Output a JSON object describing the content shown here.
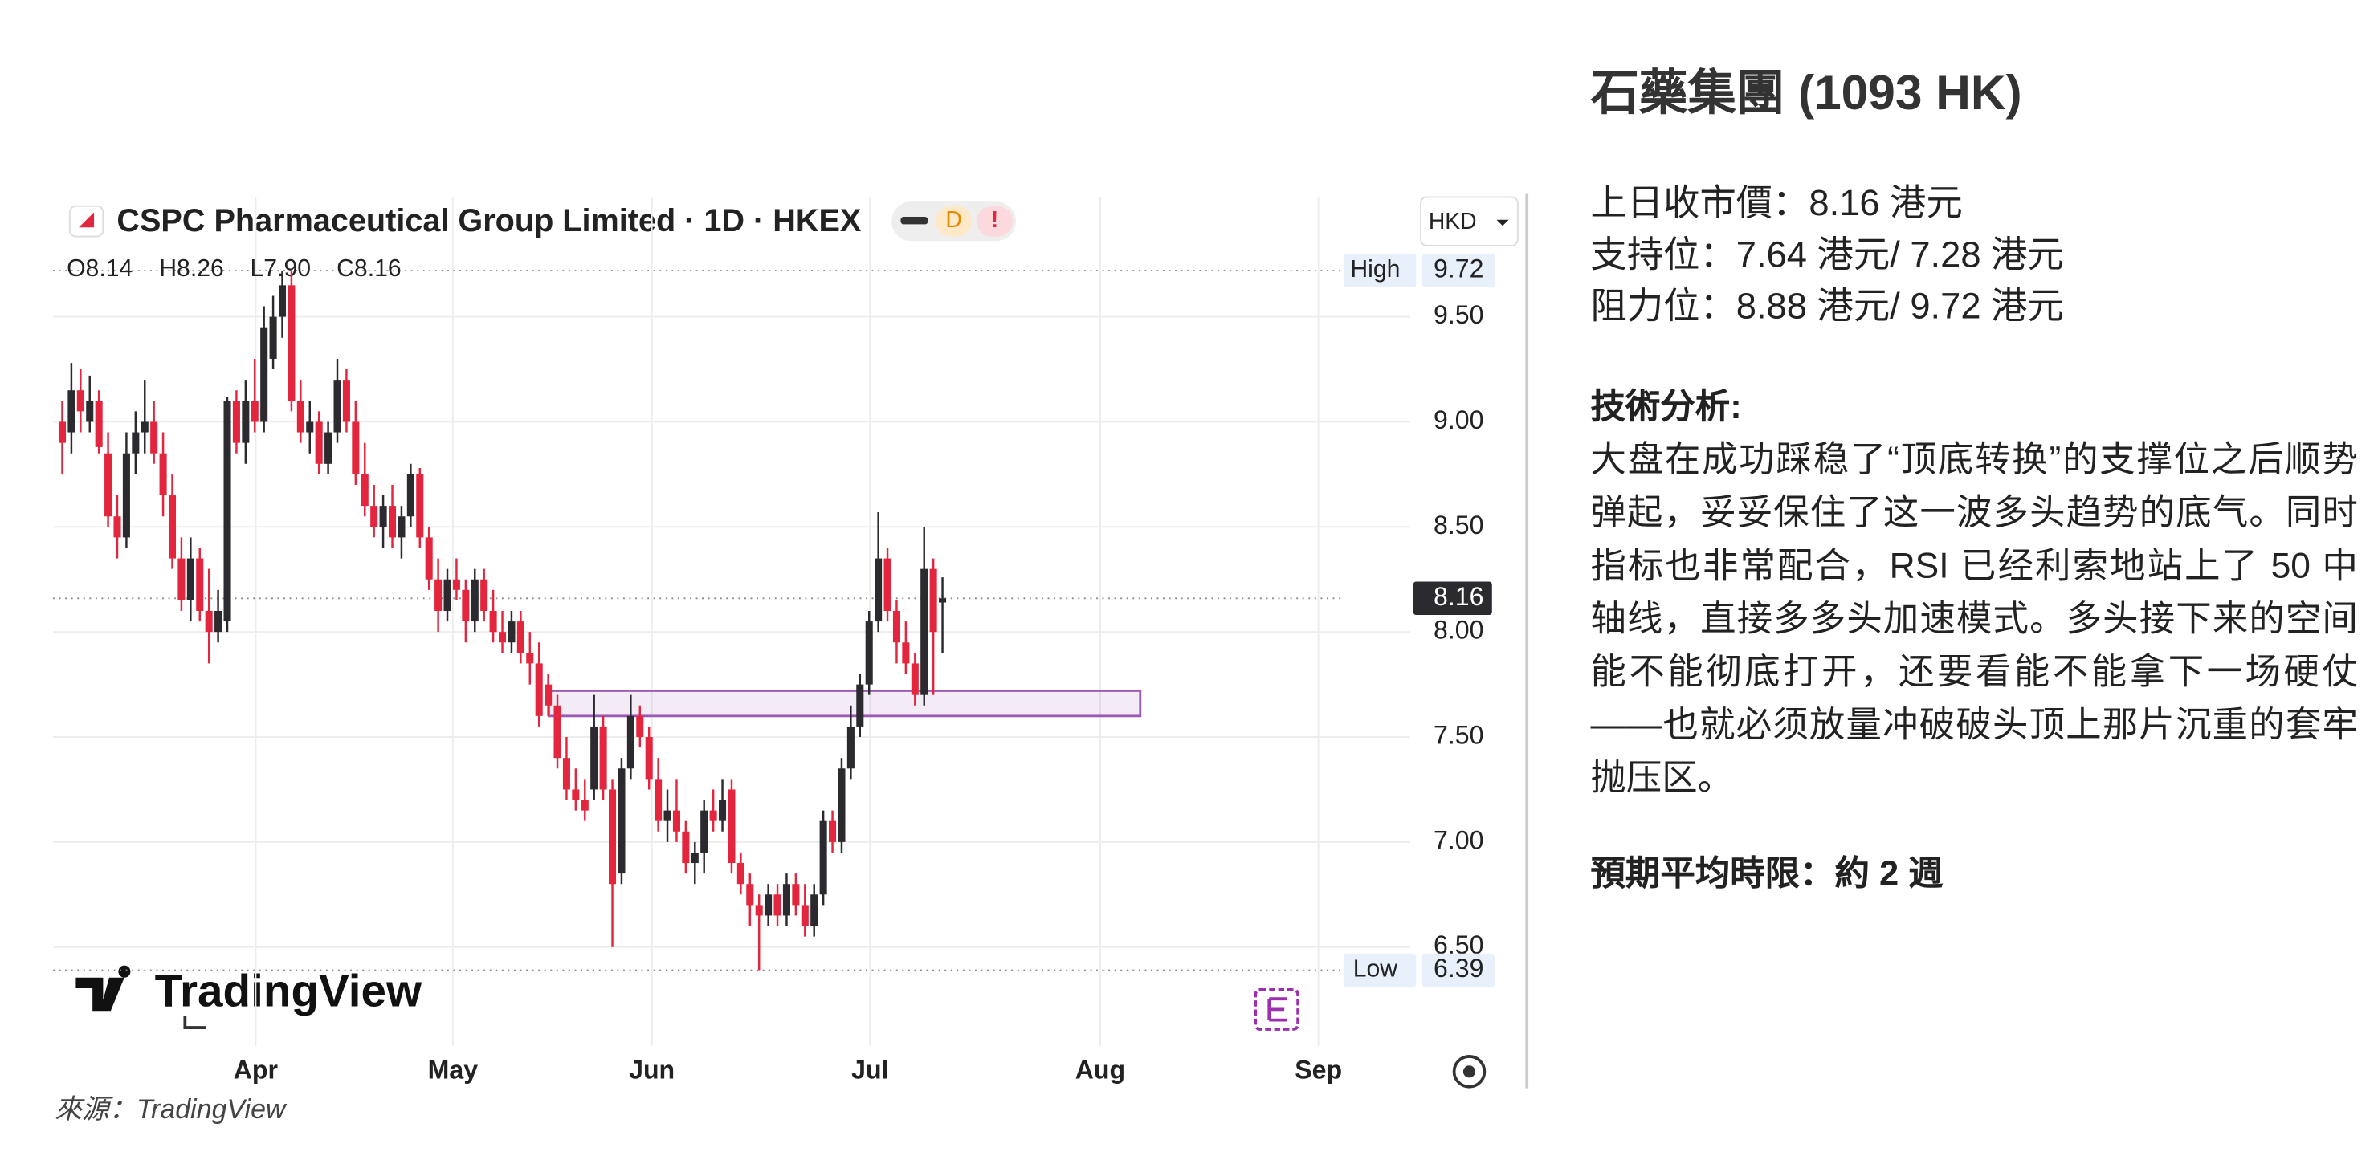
{
  "chart_data": {
    "type": "candlestick",
    "title": "CSPC Pharmaceutical Group Limited · 1D · HKEX",
    "ohlc_labels": [
      "O8.14",
      "H8.26",
      "L7.90",
      "C8.16"
    ],
    "currency": "HKD",
    "interval_badge": "D",
    "alert_badge": "!",
    "logo": "TradingView",
    "up_color": "#2b2b2f",
    "down_color": "#e3263d",
    "categories": [
      null,
      null,
      null,
      null,
      null,
      null,
      null,
      null,
      null,
      null,
      null,
      null,
      null,
      null,
      null,
      null,
      null,
      null,
      null,
      null,
      null,
      null,
      null,
      null,
      null,
      null,
      null,
      null,
      null,
      null,
      null,
      null,
      null,
      null,
      null,
      null,
      null,
      null,
      null,
      null,
      null,
      null,
      null,
      null,
      null,
      null,
      null,
      null,
      null,
      null,
      null,
      null,
      null,
      null,
      null,
      null,
      null,
      null,
      null,
      null,
      null,
      null,
      null,
      null,
      null,
      null,
      null,
      null,
      null,
      null,
      null,
      null,
      null,
      null,
      null,
      null,
      null,
      null,
      null,
      null,
      null,
      null,
      null,
      null,
      null,
      null,
      null,
      null,
      null,
      null,
      null,
      null,
      null,
      null,
      null,
      null,
      null
    ],
    "open": [
      9.0,
      8.95,
      9.15,
      9.0,
      9.1,
      8.85,
      8.55,
      8.45,
      8.85,
      8.95,
      9.0,
      8.85,
      8.65,
      8.35,
      8.15,
      8.35,
      8.1,
      8.0,
      8.05,
      9.1,
      8.9,
      9.1,
      9.0,
      9.3,
      9.5,
      9.65,
      9.1,
      8.95,
      9.0,
      8.8,
      8.95,
      9.2,
      9.0,
      8.75,
      8.6,
      8.5,
      8.6,
      8.45,
      8.55,
      8.75,
      8.45,
      8.25,
      8.1,
      8.25,
      8.2,
      8.05,
      8.25,
      8.1,
      8.0,
      7.95,
      8.05,
      7.9,
      7.85,
      7.75,
      7.65,
      7.4,
      7.25,
      7.2,
      7.25,
      7.55,
      7.25,
      6.85,
      7.35,
      7.6,
      7.5,
      7.3,
      7.1,
      7.15,
      7.05,
      6.9,
      6.95,
      7.15,
      7.1,
      7.25,
      6.9,
      6.8,
      6.7,
      6.65,
      6.75,
      6.65,
      6.8,
      6.7,
      6.6,
      6.75,
      7.1,
      7.0,
      7.35,
      7.55,
      7.75,
      8.05,
      8.35,
      8.1,
      7.95,
      7.85,
      7.7,
      8.3,
      8.14
    ],
    "high": [
      9.1,
      9.28,
      9.25,
      9.22,
      9.15,
      8.95,
      8.65,
      8.95,
      9.05,
      9.2,
      9.1,
      8.95,
      8.75,
      8.45,
      8.45,
      8.4,
      8.3,
      8.2,
      9.12,
      9.15,
      9.2,
      9.3,
      9.55,
      9.6,
      9.72,
      9.72,
      9.2,
      9.1,
      9.05,
      9.0,
      9.3,
      9.25,
      9.1,
      8.9,
      8.7,
      8.65,
      8.7,
      8.6,
      8.8,
      8.78,
      8.5,
      8.35,
      8.3,
      8.35,
      8.25,
      8.3,
      8.3,
      8.2,
      8.1,
      8.1,
      8.1,
      8.0,
      7.95,
      7.8,
      7.7,
      7.5,
      7.35,
      7.3,
      7.7,
      7.6,
      7.3,
      7.4,
      7.7,
      7.65,
      7.55,
      7.4,
      7.25,
      7.3,
      7.1,
      7.0,
      7.2,
      7.25,
      7.3,
      7.3,
      6.95,
      6.85,
      6.75,
      6.8,
      6.8,
      6.85,
      6.85,
      6.8,
      6.8,
      7.15,
      7.15,
      7.4,
      7.65,
      7.8,
      8.1,
      8.57,
      8.4,
      8.15,
      8.05,
      7.9,
      8.5,
      8.35,
      8.26
    ],
    "low": [
      8.75,
      8.85,
      8.95,
      8.95,
      8.85,
      8.5,
      8.35,
      8.4,
      8.75,
      8.85,
      8.8,
      8.55,
      8.3,
      8.1,
      8.05,
      8.05,
      7.85,
      7.95,
      8.0,
      8.85,
      8.8,
      8.95,
      8.95,
      9.25,
      9.4,
      9.05,
      8.9,
      8.85,
      8.75,
      8.75,
      8.9,
      8.95,
      8.7,
      8.55,
      8.45,
      8.4,
      8.4,
      8.35,
      8.5,
      8.4,
      8.2,
      8.0,
      8.05,
      8.15,
      7.95,
      8.0,
      8.05,
      7.95,
      7.9,
      7.9,
      7.85,
      7.75,
      7.55,
      7.6,
      7.35,
      7.2,
      7.15,
      7.1,
      7.2,
      7.2,
      6.5,
      6.8,
      7.3,
      7.45,
      7.25,
      7.05,
      7.0,
      7.0,
      6.85,
      6.8,
      6.85,
      7.05,
      7.05,
      6.85,
      6.75,
      6.6,
      6.39,
      6.6,
      6.6,
      6.6,
      6.65,
      6.55,
      6.55,
      6.7,
      6.95,
      6.95,
      7.3,
      7.5,
      7.7,
      8.0,
      8.05,
      7.85,
      7.8,
      7.65,
      7.65,
      7.7,
      7.9
    ],
    "close": [
      8.9,
      9.15,
      9.05,
      9.1,
      8.88,
      8.55,
      8.45,
      8.85,
      8.95,
      9.0,
      8.85,
      8.65,
      8.35,
      8.15,
      8.35,
      8.1,
      8.0,
      8.1,
      9.1,
      8.9,
      9.1,
      9.0,
      9.45,
      9.5,
      9.65,
      9.1,
      8.95,
      9.0,
      8.8,
      8.95,
      9.2,
      9.0,
      8.75,
      8.6,
      8.5,
      8.6,
      8.45,
      8.55,
      8.75,
      8.45,
      8.25,
      8.1,
      8.25,
      8.2,
      8.05,
      8.25,
      8.1,
      8.0,
      7.95,
      8.05,
      7.9,
      7.85,
      7.6,
      7.65,
      7.4,
      7.25,
      7.2,
      7.15,
      7.55,
      7.25,
      6.8,
      7.35,
      7.6,
      7.5,
      7.3,
      7.1,
      7.15,
      7.05,
      6.9,
      6.95,
      7.15,
      7.1,
      7.2,
      6.9,
      6.8,
      6.7,
      6.65,
      6.75,
      6.65,
      6.8,
      6.7,
      6.6,
      6.75,
      7.1,
      7.0,
      7.35,
      7.55,
      7.75,
      8.05,
      8.35,
      8.1,
      7.95,
      7.85,
      7.7,
      8.3,
      8.0,
      8.16
    ],
    "xlim": [
      -1,
      147
    ],
    "xticks": [
      {
        "value": 21.1,
        "label": "Apr"
      },
      {
        "value": 42.6,
        "label": "May"
      },
      {
        "value": 64.3,
        "label": "Jun"
      },
      {
        "value": 88.1,
        "label": "Jul"
      },
      {
        "value": 113.2,
        "label": "Aug"
      },
      {
        "value": 137.0,
        "label": "Sep"
      }
    ],
    "ylim": [
      6.03,
      10.07
    ],
    "yticks": [
      {
        "value": 6.5,
        "label": "6.50"
      },
      {
        "value": 7,
        "label": "7.00"
      },
      {
        "value": 7.5,
        "label": "7.50"
      },
      {
        "value": 8,
        "label": "8.00"
      },
      {
        "value": 8.5,
        "label": "8.50"
      },
      {
        "value": 9,
        "label": "9.00"
      },
      {
        "value": 9.5,
        "label": "9.50"
      }
    ],
    "grid": true,
    "price_lines": [
      {
        "label": "High",
        "value": 9.72,
        "value_label": "9.72"
      },
      {
        "label": "Low",
        "value": 6.39,
        "value_label": "6.39"
      },
      {
        "value": 8.16,
        "value_label": "8.16"
      }
    ],
    "zone": {
      "low": 7.6,
      "high": 7.72,
      "color": "#9b59b6"
    },
    "source": "來源：TradingView"
  },
  "panel": {
    "title": "石藥集團 (1093 HK)",
    "info": [
      "上日收市價：8.16 港元",
      "支持位：7.64 港元/ 7.28 港元",
      "阻力位：8.88 港元/ 9.72 港元"
    ],
    "heading": "技術分析:",
    "paragraph": "大盘在成功踩稳了“顶底转换”的支撑位之后顺势弹起，妥妥保住了这一波多头趋势的底气。同时指标也非常配合，RSI 已经利索地站上了 50 中轴线，直接多多头加速模式。多头接下来的空间能不能彻底打开，还要看能不能拿下一场硬仗——也就必须放量冲破破头顶上那片沉重的套牢抛压区。",
    "footer": "預期平均時限：約 2 週"
  }
}
